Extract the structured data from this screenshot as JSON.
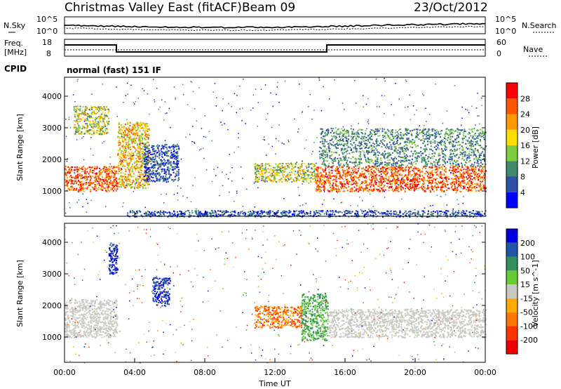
{
  "header": {
    "title": "Christmas Valley East (fitACF)",
    "beam": "Beam 09",
    "date": "23/Oct/2012"
  },
  "noise_panel": {
    "left_label": "N.Sky",
    "right_label": "N.Search",
    "left_ticks": [
      "10^5",
      "10^0"
    ],
    "right_ticks": [
      "10^5",
      "10^0"
    ]
  },
  "freq_panel": {
    "left_label_1": "Freq.",
    "left_label_2": "[MHz]",
    "right_label": "Nave",
    "left_ticks": [
      "18",
      "8"
    ],
    "right_ticks": [
      "60",
      "0"
    ]
  },
  "cpid": {
    "label": "CPID",
    "value": "normal (fast) 151 IF"
  },
  "colors": {
    "power_scale": [
      "#0000ff",
      "#2f4fa8",
      "#3f8a6a",
      "#7fcc40",
      "#ffdd00",
      "#ff9900",
      "#ff5500",
      "#ff0000"
    ],
    "velocity_scale": [
      "#0000dd",
      "#2255aa",
      "#2f8f5f",
      "#66cc33",
      "#c8c8c0",
      "#ffaa00",
      "#ff7700",
      "#ff3300",
      "#ee0000"
    ]
  },
  "chart_data": [
    {
      "type": "heatmap",
      "name": "power",
      "ylabel": "Slant Range [km]",
      "yticks": [
        1000,
        2000,
        3000,
        4000
      ],
      "ylim": [
        200,
        4600
      ],
      "colorbar_label": "Power [dB]",
      "colorbar_ticks": [
        "4",
        "8",
        "12",
        "16",
        "20",
        "24",
        "28"
      ],
      "features": [
        {
          "t": [
            0.0,
            3.0
          ],
          "range": [
            1000,
            1800
          ],
          "level": "high"
        },
        {
          "t": [
            0.5,
            2.5
          ],
          "range": [
            2800,
            3700
          ],
          "level": "medium"
        },
        {
          "t": [
            3.0,
            4.8
          ],
          "range": [
            1100,
            3200
          ],
          "level": "medium-high"
        },
        {
          "t": [
            4.5,
            6.5
          ],
          "range": [
            1300,
            2500
          ],
          "level": "low"
        },
        {
          "t": [
            3.5,
            24.0
          ],
          "range": [
            200,
            400
          ],
          "level": "low"
        },
        {
          "t": [
            10.8,
            14.3
          ],
          "range": [
            1300,
            1900
          ],
          "level": "medium"
        },
        {
          "t": [
            14.3,
            24.0
          ],
          "range": [
            1000,
            1800
          ],
          "level": "high"
        },
        {
          "t": [
            14.5,
            24.0
          ],
          "range": [
            1800,
            3000
          ],
          "level": "medium-low"
        }
      ]
    },
    {
      "type": "heatmap",
      "name": "velocity",
      "xlabel": "Time UT",
      "xticks": [
        "00:00",
        "04:00",
        "08:00",
        "12:00",
        "16:00",
        "20:00",
        "00:00"
      ],
      "xlim": [
        0,
        24
      ],
      "ylabel": "Slant Range [km]",
      "yticks": [
        1000,
        2000,
        3000,
        4000
      ],
      "ylim": [
        200,
        4600
      ],
      "colorbar_label": "Velocity [m s^-1]",
      "colorbar_ticks": [
        "200",
        "100",
        "50",
        "15",
        "-15",
        "-50",
        "-100",
        "-200"
      ],
      "features": [
        {
          "t": [
            0.0,
            3.0
          ],
          "range": [
            1000,
            2200
          ],
          "velocity": "near zero"
        },
        {
          "t": [
            2.5,
            3.0
          ],
          "range": [
            3000,
            4000
          ],
          "velocity": "positive"
        },
        {
          "t": [
            5.0,
            6.0
          ],
          "range": [
            2000,
            2900
          ],
          "velocity": "positive"
        },
        {
          "t": [
            10.8,
            13.5
          ],
          "range": [
            1300,
            2000
          ],
          "velocity": "negative"
        },
        {
          "t": [
            13.5,
            15.0
          ],
          "range": [
            900,
            2400
          ],
          "velocity": "small positive"
        },
        {
          "t": [
            15.0,
            24.0
          ],
          "range": [
            1000,
            1900
          ],
          "velocity": "near zero"
        }
      ]
    }
  ]
}
